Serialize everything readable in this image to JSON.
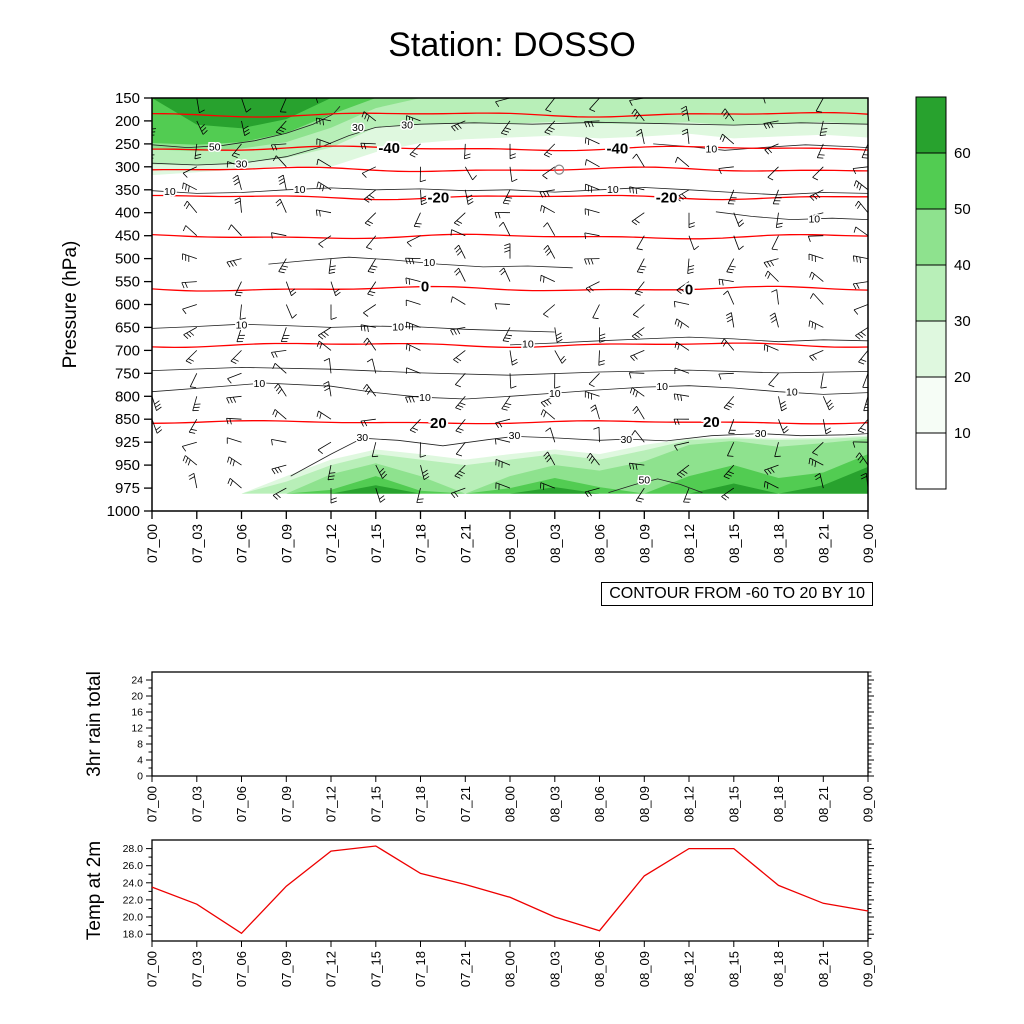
{
  "title": "Station: DOSSO",
  "time_labels": [
    "07_00",
    "07_03",
    "07_06",
    "07_09",
    "07_12",
    "07_15",
    "07_18",
    "07_21",
    "08_00",
    "08_03",
    "08_06",
    "08_09",
    "08_12",
    "08_15",
    "08_18",
    "08_21",
    "09_00"
  ],
  "chart_data": [
    {
      "id": "pressure-time-section",
      "type": "heatmap",
      "ylabel": "Pressure (hPa)",
      "contour_note": "CONTOUR FROM -60 TO 20 BY 10",
      "pressure_levels": [
        150,
        200,
        250,
        300,
        350,
        400,
        450,
        500,
        550,
        600,
        650,
        700,
        750,
        800,
        850,
        925,
        950,
        975,
        1000
      ],
      "temperature_contours": [
        {
          "value": -50,
          "pressure": 186,
          "labels": []
        },
        {
          "value": -40,
          "pressure": 260,
          "labels": [
            5.3,
            10.4
          ]
        },
        {
          "value": -30,
          "pressure": 306,
          "labels": []
        },
        {
          "value": -20,
          "pressure": 366,
          "labels": [
            6.4,
            11.5
          ]
        },
        {
          "value": -10,
          "pressure": 452,
          "labels": []
        },
        {
          "value": 0,
          "pressure": 566,
          "labels": [
            6.1,
            12.0
          ]
        },
        {
          "value": 10,
          "pressure": 688,
          "labels": []
        },
        {
          "value": 20,
          "pressure": 860,
          "labels": [
            6.4,
            12.5
          ]
        }
      ],
      "humidity_contours": [
        {
          "label": "30",
          "points": [
            [
              0,
              292
            ],
            [
              1,
              296
            ],
            [
              2,
              292
            ],
            [
              3,
              278
            ],
            [
              3.8,
              256
            ],
            [
              4.4,
              232
            ],
            [
              5,
              214
            ],
            [
              6,
              207
            ],
            [
              7.2,
              204
            ],
            [
              8.5,
              207
            ],
            [
              10,
              203
            ],
            [
              11.5,
              206
            ],
            [
              13,
              209
            ],
            [
              14.5,
              204
            ],
            [
              16,
              207
            ]
          ],
          "labels": [
            [
              2.0,
              294
            ],
            [
              4.6,
              214
            ],
            [
              5.7,
              209
            ]
          ]
        },
        {
          "label": "50",
          "points": [
            [
              0,
              252
            ],
            [
              0.8,
              258
            ],
            [
              1.6,
              253
            ],
            [
              2.3,
              243
            ],
            [
              3,
              227
            ],
            [
              3.6,
              207
            ],
            [
              4.05,
              185
            ],
            [
              4.2,
              168
            ]
          ],
          "labels": [
            [
              1.4,
              257
            ]
          ]
        },
        {
          "label": "10",
          "points": [
            [
              0,
              352
            ],
            [
              1,
              358
            ],
            [
              2,
              356
            ],
            [
              3,
              350
            ],
            [
              4,
              346
            ],
            [
              5,
              350
            ],
            [
              6,
              348
            ],
            [
              7,
              352
            ],
            [
              8,
              350
            ],
            [
              9,
              355
            ],
            [
              10,
              350
            ],
            [
              11,
              345
            ],
            [
              12,
              350
            ],
            [
              13,
              356
            ],
            [
              14,
              361
            ],
            [
              15,
              356
            ],
            [
              16,
              358
            ]
          ],
          "labels": [
            [
              0.4,
              354
            ],
            [
              3.3,
              349
            ],
            [
              10.3,
              349
            ]
          ]
        },
        {
          "label": "10",
          "points": [
            [
              11.2,
              250
            ],
            [
              12,
              256
            ],
            [
              12.8,
              264
            ],
            [
              13.6,
              258
            ],
            [
              14.6,
              252
            ],
            [
              15.6,
              256
            ],
            [
              16,
              258
            ]
          ],
          "labels": [
            [
              12.5,
              261
            ]
          ]
        },
        {
          "label": "10",
          "points": [
            [
              12.6,
              398
            ],
            [
              13.4,
              408
            ],
            [
              14.3,
              415
            ],
            [
              15.2,
              412
            ],
            [
              16,
              415
            ]
          ],
          "labels": [
            [
              14.8,
              414
            ]
          ]
        },
        {
          "label": "10",
          "points": [
            [
              2.6,
              512
            ],
            [
              3.5,
              504
            ],
            [
              4.4,
              497
            ],
            [
              5.4,
              503
            ],
            [
              6.4,
              512
            ],
            [
              7.4,
              518
            ],
            [
              8.4,
              516
            ],
            [
              9.4,
              520
            ]
          ],
          "labels": [
            [
              6.2,
              509
            ]
          ]
        },
        {
          "label": "10",
          "points": [
            [
              0,
              652
            ],
            [
              1,
              648
            ],
            [
              2,
              643
            ],
            [
              3,
              646
            ],
            [
              4,
              650
            ],
            [
              5,
              647
            ],
            [
              6,
              649
            ],
            [
              7,
              654
            ],
            [
              8,
              657
            ],
            [
              9,
              660
            ]
          ],
          "labels": [
            [
              2.0,
              645
            ],
            [
              5.5,
              649
            ]
          ]
        },
        {
          "label": "10",
          "points": [
            [
              8,
              688
            ],
            [
              9,
              684
            ],
            [
              10,
              679
            ],
            [
              11,
              675
            ],
            [
              12,
              671
            ],
            [
              13,
              675
            ],
            [
              14,
              681
            ],
            [
              15,
              677
            ],
            [
              16,
              679
            ]
          ],
          "labels": [
            [
              8.4,
              686
            ]
          ]
        },
        {
          "label": "10",
          "points": [
            [
              0,
              790
            ],
            [
              1.5,
              779
            ],
            [
              2.5,
              771
            ],
            [
              4,
              778
            ],
            [
              5,
              792
            ],
            [
              6,
              802
            ],
            [
              7,
              806
            ],
            [
              8,
              800
            ],
            [
              9,
              793
            ],
            [
              10,
              786
            ],
            [
              11,
              780
            ],
            [
              12,
              777
            ],
            [
              13,
              782
            ],
            [
              14,
              790
            ],
            [
              15,
              796
            ],
            [
              16,
              792
            ]
          ],
          "labels": [
            [
              2.4,
              772
            ],
            [
              6.1,
              803
            ],
            [
              9.0,
              794
            ],
            [
              11.4,
              779
            ],
            [
              14.3,
              791
            ]
          ]
        },
        {
          "label": "10",
          "points": [
            [
              0,
              744
            ],
            [
              2,
              737
            ],
            [
              4,
              741
            ],
            [
              6,
              749
            ],
            [
              8,
              754
            ],
            [
              10,
              747
            ],
            [
              12,
              743
            ],
            [
              14,
              749
            ],
            [
              16,
              746
            ]
          ],
          "labels": []
        },
        {
          "label": "30",
          "points": [
            [
              3.1,
              962
            ],
            [
              4,
              938
            ],
            [
              4.7,
              912
            ],
            [
              5.5,
              919
            ],
            [
              6.5,
              929
            ],
            [
              7.5,
              917
            ],
            [
              8.1,
              906
            ],
            [
              9,
              911
            ],
            [
              10,
              919
            ],
            [
              10.6,
              915
            ],
            [
              11.5,
              921
            ],
            [
              12.5,
              904
            ],
            [
              13.6,
              897
            ],
            [
              14.5,
              904
            ],
            [
              15.5,
              901
            ],
            [
              16,
              897
            ]
          ],
          "labels": [
            [
              4.7,
              910
            ],
            [
              8.1,
              904
            ],
            [
              10.6,
              917
            ],
            [
              13.6,
              896
            ]
          ]
        },
        {
          "label": "50",
          "points": [
            [
              10.2,
              980
            ],
            [
              10.8,
              971
            ],
            [
              11.3,
              965
            ],
            [
              11.8,
              971
            ],
            [
              12.3,
              980
            ]
          ],
          "labels": [
            [
              11.0,
              966
            ]
          ]
        }
      ],
      "humidity_fill": {
        "thresholds": [
          20,
          30,
          40,
          50,
          60
        ],
        "colors": [
          "#dff8df",
          "#b8efb8",
          "#8ee28e",
          "#52cc52",
          "#28a22e"
        ],
        "top_region_bottom": {
          "20": [
            318,
            312,
            305,
            298,
            300,
            268,
            248,
            240,
            236,
            232,
            238,
            234,
            228,
            238,
            234,
            230,
            236
          ],
          "30": [
            295,
            297,
            293,
            280,
            258,
            214,
            208,
            205,
            206,
            202,
            206,
            206,
            203,
            210,
            206,
            202,
            208
          ],
          "40": [
            262,
            266,
            260,
            246,
            215,
            172,
            150,
            150,
            150,
            150,
            150,
            150,
            150,
            150,
            150,
            150,
            150
          ],
          "50": [
            248,
            252,
            246,
            226,
            186,
            150,
            150,
            150,
            150,
            150,
            150,
            150,
            150,
            150,
            150,
            150,
            150
          ],
          "60": [
            150,
            208,
            216,
            196,
            150,
            150,
            150,
            150,
            150,
            150,
            150,
            150,
            150,
            150,
            150,
            150,
            150
          ]
        },
        "bottom_region_top": {
          "20": [
            981,
            981,
            981,
            962,
            944,
            933,
            938,
            944,
            938,
            933,
            938,
            928,
            913,
            908,
            913,
            910,
            903
          ],
          "30": [
            981,
            981,
            981,
            968,
            950,
            938,
            944,
            950,
            944,
            938,
            944,
            934,
            918,
            913,
            918,
            915,
            907
          ],
          "40": [
            981,
            981,
            981,
            981,
            960,
            948,
            962,
            981,
            962,
            950,
            956,
            946,
            928,
            921,
            930,
            926,
            914
          ],
          "50": [
            981,
            981,
            981,
            981,
            977,
            962,
            978,
            981,
            975,
            964,
            974,
            981,
            962,
            950,
            964,
            958,
            938
          ],
          "60": [
            981,
            981,
            981,
            981,
            981,
            972,
            981,
            981,
            981,
            974,
            981,
            981,
            981,
            970,
            981,
            972,
            952
          ]
        },
        "bottom_region_base": 981
      },
      "colorbar": {
        "labels": [
          "10",
          "20",
          "30",
          "40",
          "50",
          "60"
        ],
        "colors": [
          "#ffffff",
          "#f6fdf6",
          "#dff8df",
          "#b8efb8",
          "#8ee28e",
          "#52cc52",
          "#28a22e"
        ]
      },
      "calm_marker": {
        "t": 9.1,
        "pressure": 306
      },
      "wind_barbs": {
        "levels": [
          150,
          200,
          250,
          300,
          350,
          400,
          450,
          500,
          550,
          600,
          650,
          700,
          750,
          800,
          850,
          925,
          950,
          975
        ],
        "stick_length": 15
      }
    },
    {
      "id": "rain",
      "type": "line",
      "ylabel": "3hr rain total",
      "yticks": [
        0,
        4,
        8,
        12,
        16,
        20,
        24
      ],
      "ymax": 26,
      "values": [
        0,
        0,
        0,
        0,
        0,
        0,
        0,
        0,
        0,
        0,
        0,
        0,
        0,
        0,
        0,
        0,
        0
      ],
      "line_color": "#000000"
    },
    {
      "id": "temp2m",
      "type": "line",
      "ylabel": "Temp at 2m",
      "yticks": [
        18,
        20,
        22,
        24,
        26,
        28
      ],
      "ytick_labels": [
        "18.0",
        "20.0",
        "22.0",
        "24.0",
        "26.0",
        "28.0"
      ],
      "yrange": [
        17.2,
        29.0
      ],
      "values": [
        23.5,
        21.5,
        18.1,
        23.6,
        27.7,
        28.3,
        25.1,
        23.8,
        22.3,
        20.0,
        18.4,
        24.8,
        28.0,
        28.0,
        23.7,
        21.6,
        20.7
      ],
      "line_color": "#ee0000"
    }
  ]
}
